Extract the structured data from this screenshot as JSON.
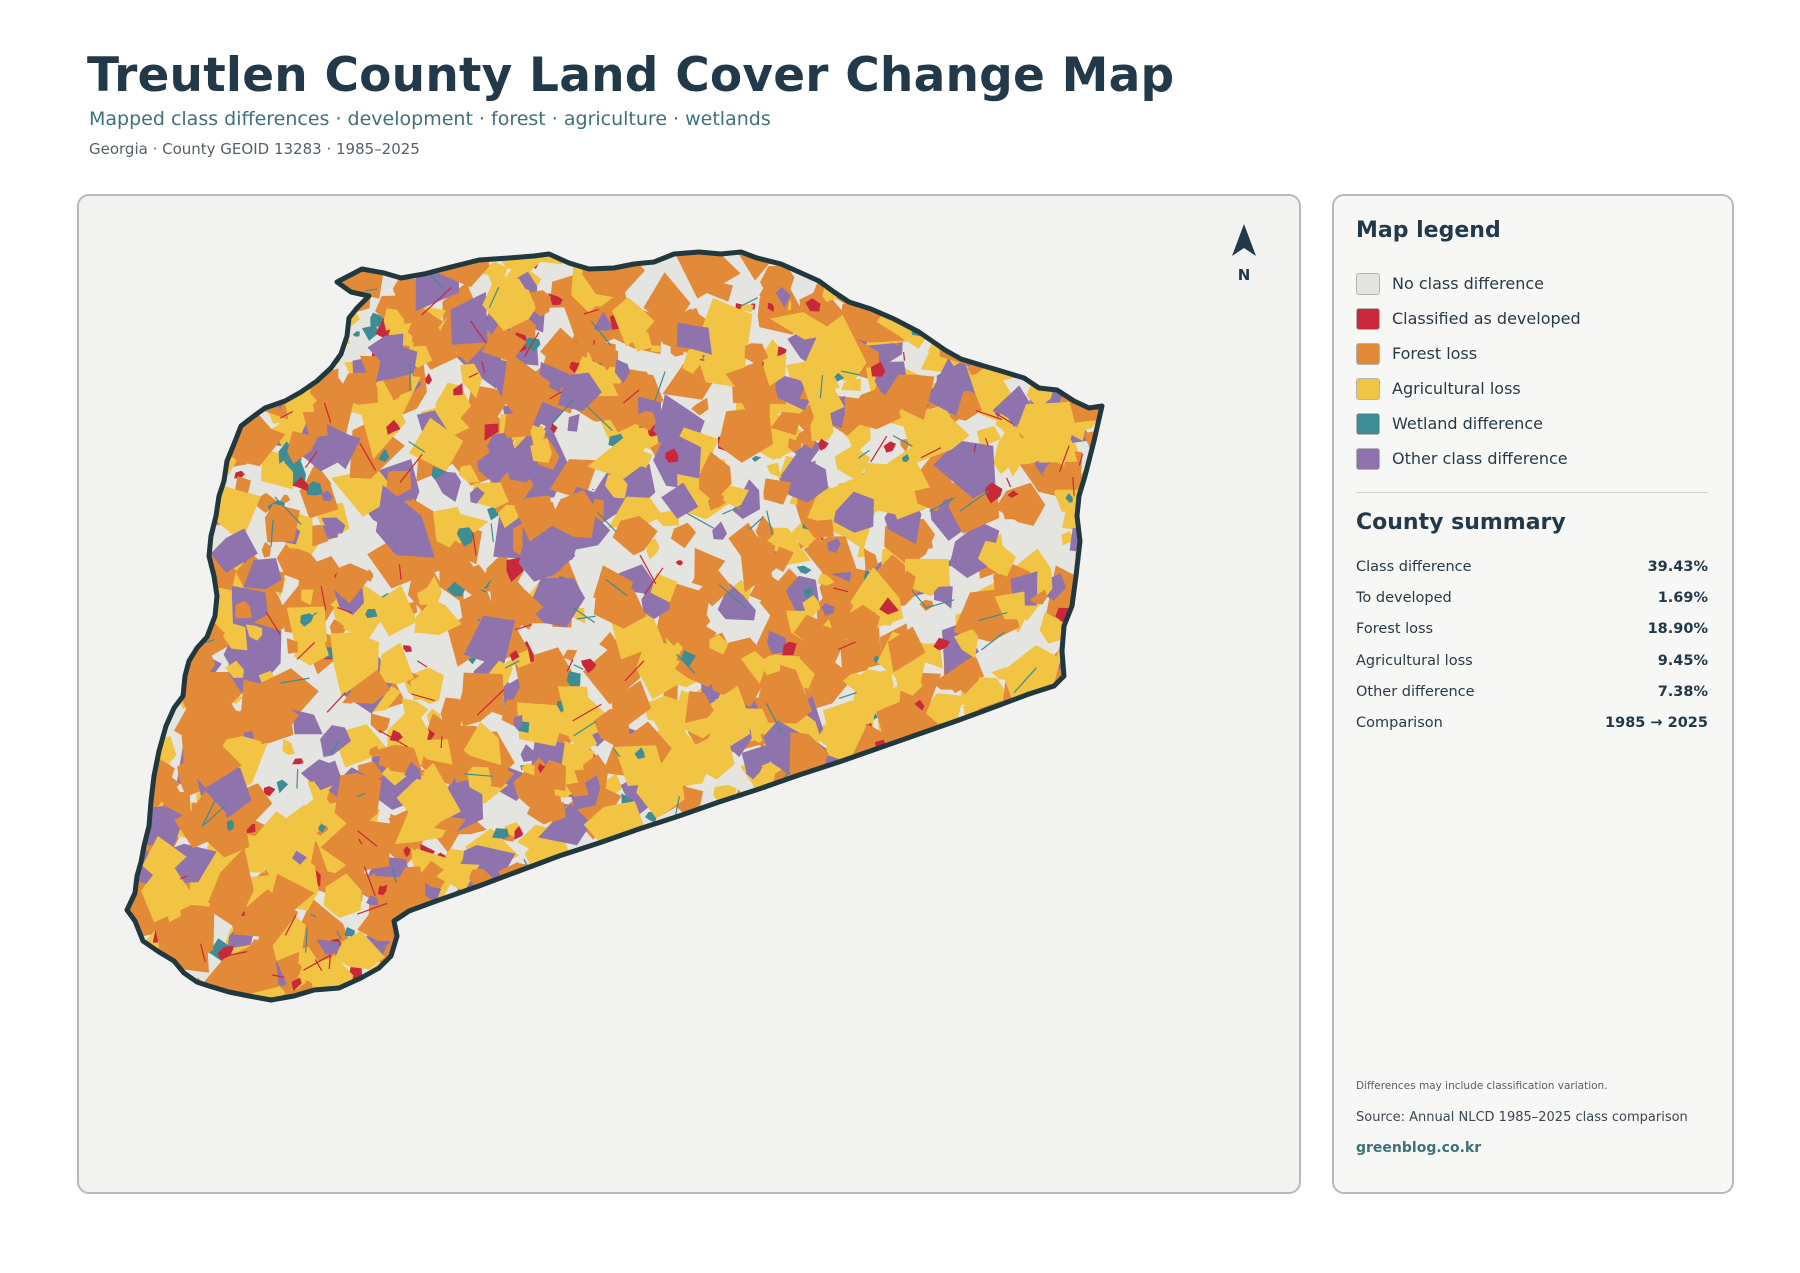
{
  "header": {
    "title": "Treutlen County Land Cover Change Map",
    "subtitle": "Mapped class differences · development · forest · agriculture · wetlands",
    "meta": "Georgia · County GEOID 13283 · 1985–2025"
  },
  "map": {
    "north_label": "N",
    "colors": {
      "no_change": "#e4e4e1",
      "developed": "#c9283a",
      "forest_loss": "#e28a37",
      "agricultural_loss": "#f2c443",
      "wetland": "#3e8d95",
      "other": "#8f73ad",
      "outline": "#22383f"
    }
  },
  "legend": {
    "title": "Map legend",
    "items": [
      {
        "label": "No class difference",
        "color": "#e4e4e1"
      },
      {
        "label": "Classified as developed",
        "color": "#c9283a"
      },
      {
        "label": "Forest loss",
        "color": "#e28a37"
      },
      {
        "label": "Agricultural loss",
        "color": "#f2c443"
      },
      {
        "label": "Wetland difference",
        "color": "#3e8d95"
      },
      {
        "label": "Other class difference",
        "color": "#8f73ad"
      }
    ]
  },
  "summary": {
    "title": "County summary",
    "rows": [
      {
        "label": "Class difference",
        "value": "39.43%"
      },
      {
        "label": "To developed",
        "value": "1.69%"
      },
      {
        "label": "Forest loss",
        "value": "18.90%"
      },
      {
        "label": "Agricultural loss",
        "value": "9.45%"
      },
      {
        "label": "Other difference",
        "value": "7.38%"
      },
      {
        "label": "Comparison",
        "value": "1985 → 2025"
      }
    ]
  },
  "footer": {
    "note": "Differences may include classification variation.",
    "source": "Source: Annual NLCD 1985–2025 class comparison",
    "brand": "greenblog.co.kr"
  }
}
